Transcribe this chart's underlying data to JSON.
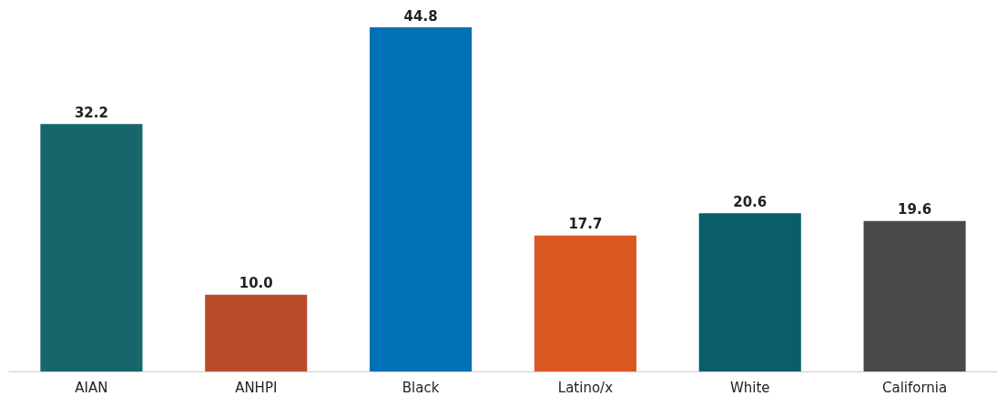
{
  "chart_data": {
    "type": "bar",
    "categories": [
      "AIAN",
      "ANHPI",
      "Black",
      "Latino/x",
      "White",
      "California"
    ],
    "values": [
      32.2,
      10.0,
      44.8,
      17.7,
      20.6,
      19.6
    ],
    "colors": [
      "#17666a",
      "#b94c28",
      "#0071b4",
      "#d95821",
      "#0a5e6b",
      "#4a4a4a"
    ],
    "value_labels": [
      "32.2",
      "10.0",
      "44.8",
      "17.7",
      "20.6",
      "19.6"
    ]
  }
}
